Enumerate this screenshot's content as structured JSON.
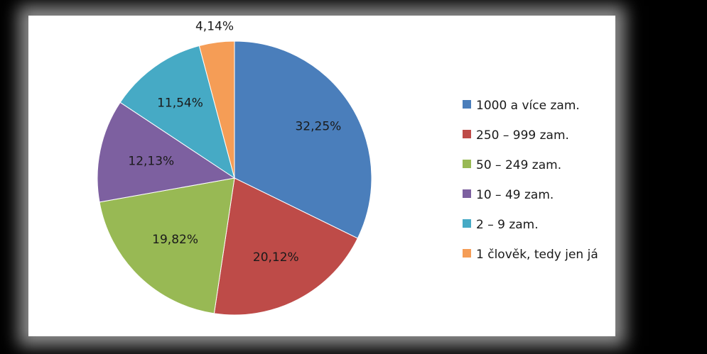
{
  "chart_data": {
    "type": "pie",
    "categories": [
      "1000 a více zam.",
      "250 – 999 zam.",
      "50 – 249 zam.",
      "10 – 49 zam.",
      "2 – 9 zam.",
      "1 člověk, tedy jen já"
    ],
    "values": [
      32.25,
      20.12,
      19.82,
      12.13,
      11.54,
      4.14
    ],
    "data_labels": [
      "32,25%",
      "20,12%",
      "19,82%",
      "12,13%",
      "11,54%",
      "4,14%"
    ],
    "colors": [
      "#4A7EBB",
      "#BE4B48",
      "#98B954",
      "#7D60A0",
      "#46AAC5",
      "#F59D56"
    ],
    "legend_position": "right",
    "title": ""
  }
}
